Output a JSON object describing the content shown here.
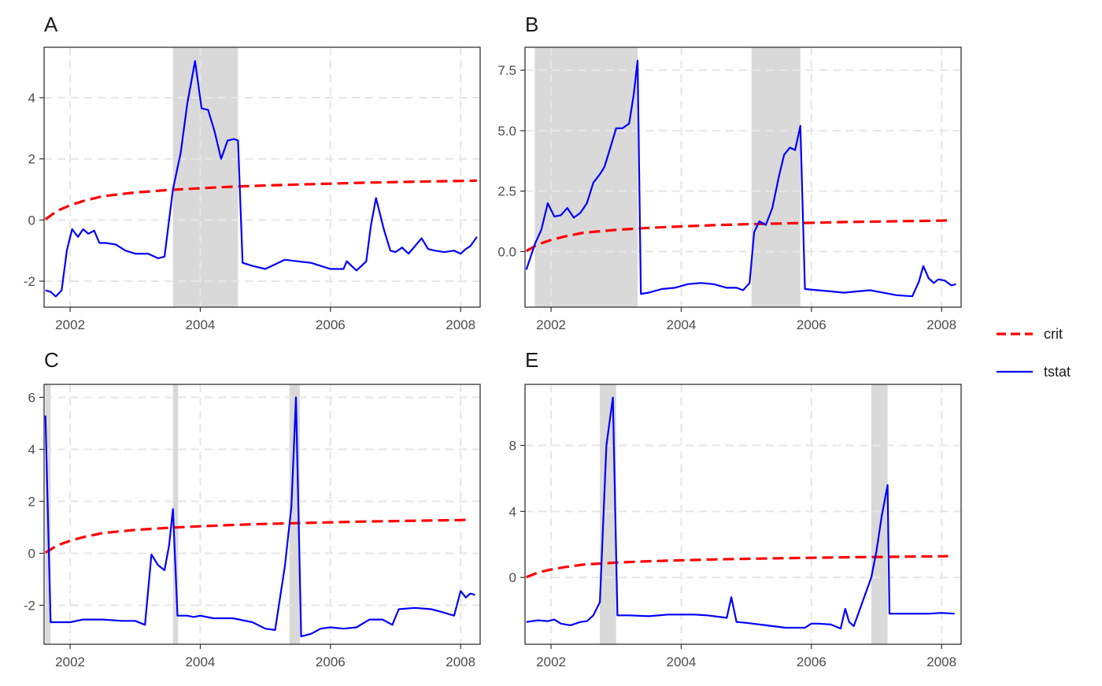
{
  "chart_data": [
    {
      "type": "line",
      "panel": "A",
      "xlim": [
        2001.6,
        2008.3
      ],
      "ylim": [
        -2.85,
        5.65
      ],
      "xticks": [
        2002,
        2004,
        2006,
        2008
      ],
      "x_tick_labels": [
        "2002",
        "2004",
        "2006",
        "2008"
      ],
      "yticks": [
        -2,
        0,
        2,
        4
      ],
      "y_tick_labels": [
        "-2",
        "0",
        "2",
        "4"
      ],
      "grid": true,
      "shaded_regions": [
        [
          2003.58,
          2004.58
        ]
      ],
      "series": [
        {
          "name": "crit",
          "style": "dashed",
          "color": "#ff0000",
          "x": [
            2001.62,
            2001.8,
            2002.0,
            2002.2,
            2002.5,
            2003.0,
            2003.5,
            2004.0,
            2004.5,
            2005.0,
            2005.5,
            2006.0,
            2006.5,
            2007.0,
            2007.5,
            2008.0,
            2008.25
          ],
          "y": [
            0.02,
            0.3,
            0.48,
            0.62,
            0.78,
            0.9,
            0.98,
            1.04,
            1.09,
            1.13,
            1.16,
            1.19,
            1.22,
            1.24,
            1.26,
            1.28,
            1.29
          ]
        },
        {
          "name": "tstat",
          "style": "solid",
          "color": "#0000ff",
          "x": [
            2001.62,
            2001.7,
            2001.78,
            2001.87,
            2001.95,
            2002.03,
            2002.12,
            2002.2,
            2002.28,
            2002.37,
            2002.45,
            2002.55,
            2002.7,
            2002.85,
            2003.0,
            2003.2,
            2003.35,
            2003.45,
            2003.58,
            2003.7,
            2003.8,
            2003.92,
            2004.02,
            2004.12,
            2004.22,
            2004.32,
            2004.42,
            2004.52,
            2004.58,
            2004.65,
            2004.8,
            2005.0,
            2005.15,
            2005.3,
            2005.5,
            2005.7,
            2006.0,
            2006.2,
            2006.25,
            2006.4,
            2006.55,
            2006.62,
            2006.7,
            2006.82,
            2006.92,
            2007.0,
            2007.1,
            2007.2,
            2007.3,
            2007.4,
            2007.5,
            2007.6,
            2007.75,
            2007.9,
            2008.0,
            2008.08,
            2008.15,
            2008.25
          ],
          "y": [
            -2.3,
            -2.35,
            -2.5,
            -2.3,
            -1.0,
            -0.3,
            -0.55,
            -0.3,
            -0.45,
            -0.35,
            -0.75,
            -0.75,
            -0.8,
            -1.0,
            -1.1,
            -1.1,
            -1.25,
            -1.2,
            1.0,
            2.2,
            3.8,
            5.2,
            3.65,
            3.6,
            2.9,
            2.0,
            2.6,
            2.65,
            2.6,
            -1.4,
            -1.5,
            -1.6,
            -1.45,
            -1.3,
            -1.35,
            -1.4,
            -1.6,
            -1.6,
            -1.35,
            -1.65,
            -1.35,
            -0.2,
            0.72,
            -0.3,
            -1.0,
            -1.05,
            -0.9,
            -1.1,
            -0.85,
            -0.6,
            -0.95,
            -1.0,
            -1.05,
            -1.0,
            -1.1,
            -0.95,
            -0.85,
            -0.55
          ]
        }
      ]
    },
    {
      "type": "line",
      "panel": "B",
      "xlim": [
        2001.6,
        2008.3
      ],
      "ylim": [
        -2.3,
        8.45
      ],
      "xticks": [
        2002,
        2004,
        2006,
        2008
      ],
      "x_tick_labels": [
        "2002",
        "2004",
        "2006",
        "2008"
      ],
      "yticks": [
        0.0,
        2.5,
        5.0,
        7.5
      ],
      "y_tick_labels": [
        "0.0",
        "2.5",
        "5.0",
        "7.5"
      ],
      "grid": true,
      "shaded_regions": [
        [
          2001.75,
          2003.33
        ],
        [
          2005.08,
          2005.83
        ]
      ],
      "series": [
        {
          "name": "crit",
          "style": "dashed",
          "color": "#ff0000",
          "x": [
            2001.62,
            2001.8,
            2002.0,
            2002.2,
            2002.5,
            2003.0,
            2003.5,
            2004.0,
            2004.5,
            2005.0,
            2005.5,
            2006.0,
            2006.5,
            2007.0,
            2007.5,
            2008.0,
            2008.1
          ],
          "y": [
            0.02,
            0.3,
            0.48,
            0.62,
            0.78,
            0.9,
            0.98,
            1.04,
            1.09,
            1.13,
            1.16,
            1.19,
            1.22,
            1.24,
            1.26,
            1.28,
            1.29
          ]
        },
        {
          "name": "tstat",
          "style": "solid",
          "color": "#0000ff",
          "x": [
            2001.62,
            2001.75,
            2001.85,
            2001.95,
            2002.05,
            2002.15,
            2002.25,
            2002.35,
            2002.45,
            2002.55,
            2002.65,
            2002.75,
            2002.82,
            2002.9,
            2003.0,
            2003.1,
            2003.2,
            2003.27,
            2003.33,
            2003.38,
            2003.5,
            2003.7,
            2003.9,
            2004.1,
            2004.3,
            2004.5,
            2004.7,
            2004.85,
            2004.95,
            2005.05,
            2005.12,
            2005.2,
            2005.3,
            2005.4,
            2005.5,
            2005.58,
            2005.67,
            2005.75,
            2005.83,
            2005.9,
            2006.1,
            2006.3,
            2006.5,
            2006.7,
            2006.9,
            2007.1,
            2007.3,
            2007.55,
            2007.65,
            2007.72,
            2007.8,
            2007.88,
            2007.95,
            2008.05,
            2008.15,
            2008.22
          ],
          "y": [
            -0.75,
            0.3,
            0.9,
            2.0,
            1.45,
            1.5,
            1.8,
            1.4,
            1.6,
            2.0,
            2.85,
            3.2,
            3.5,
            4.2,
            5.1,
            5.1,
            5.3,
            6.5,
            7.9,
            -1.75,
            -1.7,
            -1.55,
            -1.5,
            -1.35,
            -1.3,
            -1.35,
            -1.5,
            -1.5,
            -1.6,
            -1.3,
            0.8,
            1.25,
            1.1,
            1.8,
            3.1,
            4.0,
            4.3,
            4.2,
            5.2,
            -1.55,
            -1.6,
            -1.65,
            -1.7,
            -1.65,
            -1.6,
            -1.7,
            -1.8,
            -1.85,
            -1.25,
            -0.6,
            -1.1,
            -1.3,
            -1.15,
            -1.2,
            -1.4,
            -1.35
          ]
        }
      ]
    },
    {
      "type": "line",
      "panel": "C",
      "xlim": [
        2001.6,
        2008.3
      ],
      "ylim": [
        -3.5,
        6.5
      ],
      "xticks": [
        2002,
        2004,
        2006,
        2008
      ],
      "x_tick_labels": [
        "2002",
        "2004",
        "2006",
        "2008"
      ],
      "yticks": [
        -2,
        0,
        2,
        4,
        6
      ],
      "y_tick_labels": [
        "-2",
        "0",
        "2",
        "4",
        "6"
      ],
      "grid": true,
      "shaded_regions": [
        [
          2001.62,
          2001.7
        ],
        [
          2003.58,
          2003.66
        ],
        [
          2005.37,
          2005.53
        ]
      ],
      "series": [
        {
          "name": "crit",
          "style": "dashed",
          "color": "#ff0000",
          "x": [
            2001.62,
            2001.8,
            2002.0,
            2002.2,
            2002.5,
            2003.0,
            2003.5,
            2004.0,
            2004.5,
            2005.0,
            2005.5,
            2006.0,
            2006.5,
            2007.0,
            2007.5,
            2008.0,
            2008.12
          ],
          "y": [
            0.02,
            0.3,
            0.48,
            0.62,
            0.78,
            0.9,
            0.98,
            1.04,
            1.09,
            1.13,
            1.16,
            1.19,
            1.22,
            1.24,
            1.26,
            1.28,
            1.29
          ]
        },
        {
          "name": "tstat",
          "style": "solid",
          "color": "#0000ff",
          "x": [
            2001.62,
            2001.7,
            2001.85,
            2002.0,
            2002.2,
            2002.5,
            2002.8,
            2003.0,
            2003.15,
            2003.25,
            2003.35,
            2003.45,
            2003.52,
            2003.58,
            2003.65,
            2003.8,
            2003.9,
            2004.0,
            2004.2,
            2004.5,
            2004.8,
            2005.0,
            2005.15,
            2005.3,
            2005.4,
            2005.47,
            2005.55,
            2005.7,
            2005.85,
            2006.0,
            2006.2,
            2006.4,
            2006.6,
            2006.8,
            2006.95,
            2007.05,
            2007.3,
            2007.55,
            2007.7,
            2007.9,
            2008.0,
            2008.08,
            2008.15,
            2008.22
          ],
          "y": [
            5.3,
            -2.65,
            -2.65,
            -2.65,
            -2.55,
            -2.55,
            -2.6,
            -2.6,
            -2.75,
            -0.05,
            -0.45,
            -0.65,
            0.3,
            1.7,
            -2.4,
            -2.4,
            -2.45,
            -2.4,
            -2.5,
            -2.5,
            -2.65,
            -2.9,
            -2.95,
            -0.5,
            1.8,
            6.0,
            -3.2,
            -3.1,
            -2.9,
            -2.85,
            -2.9,
            -2.85,
            -2.55,
            -2.55,
            -2.75,
            -2.15,
            -2.1,
            -2.15,
            -2.25,
            -2.4,
            -1.45,
            -1.7,
            -1.55,
            -1.6
          ]
        }
      ]
    },
    {
      "type": "line",
      "panel": "E",
      "xlim": [
        2001.6,
        2008.3
      ],
      "ylim": [
        -4.05,
        11.7
      ],
      "xticks": [
        2002,
        2004,
        2006,
        2008
      ],
      "x_tick_labels": [
        "2002",
        "2004",
        "2006",
        "2008"
      ],
      "yticks": [
        0,
        4,
        8
      ],
      "y_tick_labels": [
        "0",
        "4",
        "8"
      ],
      "grid": true,
      "shaded_regions": [
        [
          2002.75,
          2003.0
        ],
        [
          2006.92,
          2007.17
        ]
      ],
      "series": [
        {
          "name": "crit",
          "style": "dashed",
          "color": "#ff0000",
          "x": [
            2001.62,
            2001.8,
            2002.0,
            2002.2,
            2002.5,
            2003.0,
            2003.5,
            2004.0,
            2004.5,
            2005.0,
            2005.5,
            2006.0,
            2006.5,
            2007.0,
            2007.5,
            2008.0,
            2008.1
          ],
          "y": [
            0.02,
            0.3,
            0.48,
            0.62,
            0.78,
            0.9,
            0.98,
            1.04,
            1.09,
            1.13,
            1.16,
            1.19,
            1.22,
            1.24,
            1.26,
            1.28,
            1.29
          ]
        },
        {
          "name": "tstat",
          "style": "solid",
          "color": "#0000ff",
          "x": [
            2001.62,
            2001.8,
            2001.95,
            2002.05,
            2002.15,
            2002.3,
            2002.45,
            2002.55,
            2002.65,
            2002.75,
            2002.85,
            2002.95,
            2003.02,
            2003.2,
            2003.5,
            2003.8,
            2004.0,
            2004.2,
            2004.4,
            2004.6,
            2004.7,
            2004.77,
            2004.85,
            2005.0,
            2005.3,
            2005.6,
            2005.9,
            2006.0,
            2006.1,
            2006.3,
            2006.45,
            2006.52,
            2006.58,
            2006.65,
            2006.72,
            2006.82,
            2006.92,
            2007.0,
            2007.08,
            2007.17,
            2007.2,
            2007.5,
            2007.8,
            2008.0,
            2008.2
          ],
          "y": [
            -2.7,
            -2.6,
            -2.65,
            -2.55,
            -2.8,
            -2.9,
            -2.7,
            -2.65,
            -2.3,
            -1.5,
            8.0,
            10.9,
            -2.3,
            -2.3,
            -2.35,
            -2.25,
            -2.25,
            -2.25,
            -2.3,
            -2.4,
            -2.45,
            -1.2,
            -2.7,
            -2.75,
            -2.9,
            -3.05,
            -3.05,
            -2.8,
            -2.8,
            -2.85,
            -3.1,
            -1.9,
            -2.7,
            -2.95,
            -2.2,
            -1.1,
            0.0,
            1.6,
            3.7,
            5.6,
            -2.2,
            -2.2,
            -2.2,
            -2.15,
            -2.2
          ]
        }
      ]
    }
  ],
  "legend": {
    "placement": "right",
    "items": [
      {
        "label": "crit",
        "color": "#ff0000",
        "style": "dashed"
      },
      {
        "label": "tstat",
        "color": "#0000ff",
        "style": "solid"
      }
    ]
  },
  "colors": {
    "shade": "#d9d9d9",
    "grid": "#e6e6e6",
    "axis_text": "#4d4d4d",
    "crit": "#ff0000",
    "tstat": "#0000ff"
  }
}
